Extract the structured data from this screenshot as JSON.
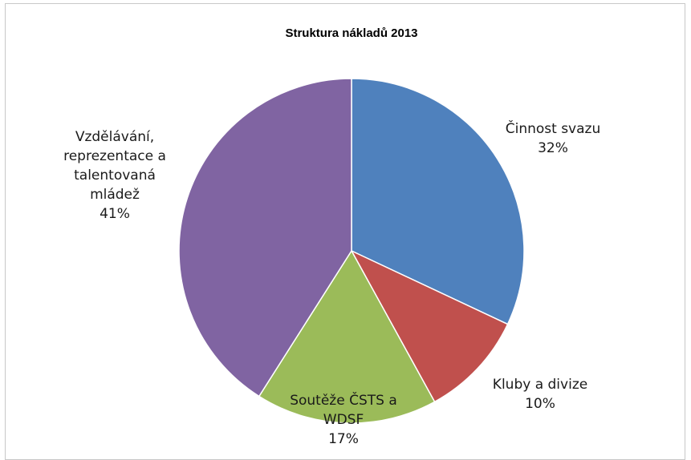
{
  "chart_data": {
    "type": "pie",
    "title": "Struktura nákladů 2013",
    "slices": [
      {
        "label_lines": [
          "Činnost svazu"
        ],
        "value": 32,
        "percent_label": "32%",
        "color": "#4f81bd"
      },
      {
        "label_lines": [
          "Kluby a divize"
        ],
        "value": 10,
        "percent_label": "10%",
        "color": "#c0504d"
      },
      {
        "label_lines": [
          "Soutěže ČSTS a",
          "WDSF"
        ],
        "value": 17,
        "percent_label": "17%",
        "color": "#9bbb59"
      },
      {
        "label_lines": [
          "Vzdělávání,",
          "reprezentace a",
          "talentovaná",
          "mládež"
        ],
        "value": 41,
        "percent_label": "41%",
        "color": "#8064a2"
      }
    ],
    "legend": "none"
  }
}
